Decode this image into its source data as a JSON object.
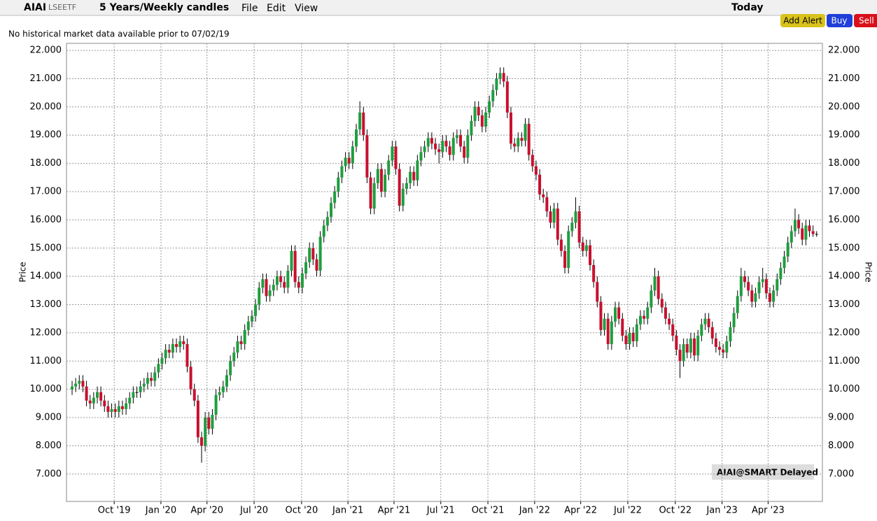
{
  "toolbar": {
    "symbol": "AIAI",
    "exchange": "LSEETF",
    "timeframe": "5 Years/Weekly candles",
    "menus": [
      "File",
      "Edit",
      "View"
    ],
    "range": "Today",
    "buttons": [
      "Add Alert",
      "Buy",
      "Sell"
    ]
  },
  "notice": "No historical market data available prior to 07/02/19",
  "watermark": "AIAI@SMART Delayed",
  "chart_data": {
    "type": "candlestick",
    "y_label": "Price",
    "grid": true,
    "up_color": "#1e9e3e",
    "down_color": "#c8102e",
    "xlim": [
      -1.56,
      208.6
    ],
    "xticks": [
      {
        "value": 11.7,
        "label": "Oct '19"
      },
      {
        "value": 24.7,
        "label": "Jan '20"
      },
      {
        "value": 37.5,
        "label": "Apr '20"
      },
      {
        "value": 50.6,
        "label": "Jul '20"
      },
      {
        "value": 63.8,
        "label": "Oct '20"
      },
      {
        "value": 76.7,
        "label": "Jan '21"
      },
      {
        "value": 89.5,
        "label": "Apr '21"
      },
      {
        "value": 102.5,
        "label": "Jul '21"
      },
      {
        "value": 115.6,
        "label": "Oct '21"
      },
      {
        "value": 128.6,
        "label": "Jan '22"
      },
      {
        "value": 141.4,
        "label": "Apr '22"
      },
      {
        "value": 154.5,
        "label": "Jul '22"
      },
      {
        "value": 167.7,
        "label": "Oct '22"
      },
      {
        "value": 180.7,
        "label": "Jan '23"
      },
      {
        "value": 193.5,
        "label": "Apr '23"
      }
    ],
    "ylim": [
      6.03,
      22.25
    ],
    "yticks": [
      {
        "value": 7,
        "label": "7.000"
      },
      {
        "value": 8,
        "label": "8.000"
      },
      {
        "value": 9,
        "label": "9.000"
      },
      {
        "value": 10,
        "label": "10.000"
      },
      {
        "value": 11,
        "label": "11.000"
      },
      {
        "value": 12,
        "label": "12.000"
      },
      {
        "value": 13,
        "label": "13.000"
      },
      {
        "value": 14,
        "label": "14.000"
      },
      {
        "value": 15,
        "label": "15.000"
      },
      {
        "value": 16,
        "label": "16.000"
      },
      {
        "value": 17,
        "label": "17.000"
      },
      {
        "value": 18,
        "label": "18.000"
      },
      {
        "value": 19,
        "label": "19.000"
      },
      {
        "value": 20,
        "label": "20.000"
      },
      {
        "value": 21,
        "label": "21.000"
      },
      {
        "value": 22,
        "label": "22.000"
      }
    ],
    "open": [
      10.0,
      10.1,
      10.2,
      10.3,
      10.1,
      9.6,
      9.5,
      9.7,
      9.9,
      9.6,
      9.4,
      9.2,
      9.3,
      9.2,
      9.4,
      9.3,
      9.5,
      9.7,
      9.9,
      9.9,
      10.1,
      10.2,
      10.4,
      10.3,
      10.6,
      10.9,
      11.1,
      11.4,
      11.3,
      11.6,
      11.5,
      11.7,
      11.6,
      10.8,
      10.0,
      9.6,
      8.3,
      8.0,
      9.0,
      8.6,
      9.1,
      9.8,
      9.9,
      10.1,
      10.5,
      11.0,
      11.3,
      11.7,
      11.6,
      12.1,
      12.4,
      12.6,
      13.0,
      13.6,
      13.9,
      13.3,
      13.5,
      13.7,
      14.0,
      13.8,
      13.6,
      14.2,
      14.9,
      13.8,
      13.6,
      14.1,
      14.5,
      15.0,
      14.6,
      14.2,
      15.4,
      15.8,
      16.1,
      16.6,
      17.0,
      17.5,
      17.9,
      18.2,
      18.0,
      18.6,
      19.2,
      19.8,
      19.0,
      17.5,
      16.4,
      17.3,
      17.8,
      17.0,
      17.6,
      18.1,
      18.6,
      17.8,
      16.5,
      17.1,
      17.3,
      17.7,
      17.4,
      18.1,
      18.4,
      18.6,
      18.9,
      18.7,
      18.5,
      18.4,
      18.8,
      18.6,
      18.3,
      18.9,
      19.0,
      18.6,
      18.2,
      19.0,
      19.5,
      20.0,
      19.7,
      19.3,
      19.8,
      20.2,
      20.6,
      21.0,
      21.2,
      20.9,
      19.8,
      18.7,
      18.6,
      18.9,
      18.8,
      19.4,
      18.3,
      17.9,
      17.6,
      16.9,
      16.8,
      16.3,
      15.9,
      16.4,
      15.3,
      14.9,
      14.3,
      15.6,
      15.9,
      16.3,
      15.2,
      14.9,
      15.1,
      14.4,
      13.8,
      13.1,
      12.1,
      12.5,
      11.6,
      12.4,
      12.9,
      12.5,
      11.9,
      11.6,
      12.0,
      11.7,
      12.3,
      12.6,
      12.5,
      12.9,
      13.5,
      14.0,
      13.2,
      12.9,
      12.5,
      12.3,
      11.9,
      11.4,
      11.0,
      11.6,
      11.3,
      11.8,
      11.2,
      11.9,
      12.3,
      12.5,
      12.2,
      11.8,
      11.5,
      11.4,
      11.3,
      11.7,
      12.2,
      12.7,
      13.3,
      14.0,
      13.8,
      13.5,
      13.1,
      13.4,
      13.8,
      13.9,
      13.4,
      13.1,
      13.5,
      13.9,
      14.3,
      14.7,
      15.2,
      15.6,
      16.0,
      15.7,
      15.3,
      15.8,
      15.6,
      15.5
    ],
    "high": [
      10.3,
      10.4,
      10.5,
      10.5,
      10.3,
      9.8,
      9.9,
      10.1,
      10.1,
      9.8,
      9.6,
      9.5,
      9.5,
      9.6,
      9.6,
      9.7,
      9.9,
      10.1,
      10.1,
      10.3,
      10.4,
      10.6,
      10.6,
      10.8,
      11.1,
      11.3,
      11.6,
      11.6,
      11.8,
      11.8,
      11.9,
      11.9,
      11.8,
      11.0,
      10.2,
      9.8,
      8.5,
      9.2,
      9.2,
      9.3,
      10.0,
      10.1,
      10.3,
      10.7,
      11.2,
      11.5,
      11.9,
      11.9,
      12.3,
      12.6,
      12.8,
      13.2,
      13.8,
      14.1,
      14.1,
      13.7,
      13.9,
      14.2,
      14.2,
      14.0,
      14.4,
      15.1,
      15.1,
      14.0,
      14.3,
      14.7,
      15.2,
      15.2,
      14.8,
      15.6,
      16.0,
      16.3,
      16.8,
      17.2,
      17.7,
      18.1,
      18.4,
      18.4,
      18.8,
      19.4,
      20.2,
      20.0,
      19.2,
      17.7,
      17.5,
      18.0,
      18.0,
      17.8,
      18.3,
      18.8,
      18.8,
      18.0,
      17.3,
      17.5,
      17.9,
      17.9,
      18.3,
      18.6,
      18.8,
      19.1,
      19.1,
      18.9,
      18.7,
      19.0,
      19.0,
      18.8,
      19.1,
      19.2,
      19.2,
      18.8,
      19.2,
      19.7,
      20.2,
      20.2,
      19.9,
      20.0,
      20.4,
      20.8,
      21.2,
      21.4,
      21.4,
      21.1,
      20.0,
      18.9,
      19.1,
      19.1,
      19.6,
      19.6,
      18.5,
      18.1,
      17.8,
      17.1,
      17.0,
      16.5,
      16.6,
      16.6,
      15.5,
      15.1,
      15.8,
      16.1,
      16.8,
      16.5,
      15.4,
      15.3,
      15.3,
      14.6,
      14.0,
      13.3,
      12.7,
      12.7,
      12.6,
      13.1,
      13.1,
      12.7,
      12.1,
      12.2,
      12.2,
      12.5,
      12.8,
      12.8,
      13.1,
      13.7,
      14.3,
      14.2,
      13.4,
      13.1,
      12.7,
      12.5,
      12.1,
      11.6,
      11.8,
      11.8,
      12.0,
      12.0,
      12.1,
      12.5,
      12.7,
      12.7,
      12.4,
      12.0,
      11.7,
      11.6,
      11.9,
      12.4,
      12.9,
      13.5,
      14.3,
      14.2,
      14.0,
      13.7,
      13.6,
      14.0,
      14.3,
      14.1,
      13.6,
      13.7,
      14.1,
      14.5,
      14.9,
      15.4,
      15.8,
      16.4,
      16.2,
      15.9,
      16.0,
      16.0,
      15.8,
      15.6
    ],
    "low": [
      9.8,
      9.9,
      10.0,
      9.9,
      9.4,
      9.3,
      9.3,
      9.5,
      9.4,
      9.2,
      9.0,
      9.0,
      9.0,
      9.0,
      9.1,
      9.1,
      9.3,
      9.5,
      9.7,
      9.7,
      9.9,
      10.0,
      10.1,
      10.1,
      10.4,
      10.7,
      10.9,
      11.1,
      11.1,
      11.3,
      11.3,
      11.4,
      10.6,
      9.8,
      9.4,
      8.1,
      7.4,
      7.8,
      8.4,
      8.4,
      8.9,
      9.6,
      9.7,
      9.9,
      10.3,
      10.8,
      11.1,
      11.4,
      11.4,
      11.9,
      12.2,
      12.4,
      12.8,
      13.4,
      13.1,
      13.1,
      13.3,
      13.5,
      13.6,
      13.4,
      13.4,
      14.0,
      13.6,
      13.4,
      13.4,
      13.9,
      14.3,
      14.4,
      14.0,
      14.0,
      15.2,
      15.6,
      15.9,
      16.4,
      16.8,
      17.3,
      17.7,
      17.8,
      17.8,
      18.4,
      19.0,
      18.8,
      17.3,
      16.2,
      16.2,
      17.1,
      16.8,
      16.8,
      17.4,
      17.9,
      17.6,
      16.3,
      16.3,
      16.9,
      17.1,
      17.2,
      17.2,
      17.9,
      18.2,
      18.4,
      18.5,
      18.3,
      18.0,
      18.2,
      18.4,
      18.1,
      18.1,
      18.7,
      18.4,
      18.0,
      18.0,
      18.8,
      19.3,
      19.5,
      19.1,
      19.1,
      19.6,
      20.0,
      20.4,
      20.8,
      20.7,
      19.6,
      18.5,
      18.4,
      18.4,
      18.6,
      18.6,
      18.1,
      17.7,
      17.4,
      16.7,
      16.6,
      16.1,
      15.7,
      15.7,
      15.1,
      14.7,
      14.1,
      14.1,
      15.4,
      15.7,
      15.0,
      14.7,
      14.7,
      14.2,
      13.6,
      12.9,
      11.9,
      11.9,
      11.4,
      11.4,
      12.2,
      12.3,
      11.7,
      11.4,
      11.4,
      11.5,
      11.5,
      12.1,
      12.3,
      12.3,
      12.7,
      13.3,
      13.0,
      12.7,
      12.3,
      12.1,
      11.7,
      11.2,
      10.4,
      10.8,
      11.1,
      11.1,
      11.0,
      11.0,
      11.7,
      12.1,
      12.0,
      11.6,
      11.3,
      11.2,
      11.1,
      11.1,
      11.5,
      12.0,
      12.5,
      13.1,
      13.6,
      13.3,
      12.9,
      12.9,
      13.2,
      13.6,
      13.2,
      12.9,
      12.9,
      13.3,
      13.7,
      14.1,
      14.5,
      15.0,
      15.4,
      15.5,
      15.1,
      15.1,
      15.4,
      15.4,
      15.4
    ],
    "close": [
      10.1,
      10.2,
      10.3,
      10.1,
      9.6,
      9.5,
      9.7,
      9.9,
      9.6,
      9.4,
      9.2,
      9.3,
      9.2,
      9.4,
      9.3,
      9.5,
      9.7,
      9.9,
      9.9,
      10.1,
      10.2,
      10.4,
      10.3,
      10.6,
      10.9,
      11.1,
      11.4,
      11.3,
      11.6,
      11.5,
      11.7,
      11.6,
      10.8,
      10.0,
      9.6,
      8.3,
      8.0,
      9.0,
      8.6,
      9.1,
      9.8,
      9.9,
      10.1,
      10.5,
      11.0,
      11.3,
      11.7,
      11.6,
      12.1,
      12.4,
      12.6,
      13.0,
      13.6,
      13.9,
      13.3,
      13.5,
      13.7,
      14.0,
      13.8,
      13.6,
      14.2,
      14.9,
      13.8,
      13.6,
      14.1,
      14.5,
      15.0,
      14.6,
      14.2,
      15.4,
      15.8,
      16.1,
      16.6,
      17.0,
      17.5,
      17.9,
      18.2,
      18.0,
      18.6,
      19.2,
      19.8,
      19.0,
      17.5,
      16.4,
      17.3,
      17.8,
      17.0,
      17.6,
      18.1,
      18.6,
      17.8,
      16.5,
      17.1,
      17.3,
      17.7,
      17.4,
      18.1,
      18.4,
      18.6,
      18.9,
      18.7,
      18.5,
      18.4,
      18.8,
      18.6,
      18.3,
      18.9,
      19.0,
      18.6,
      18.2,
      19.0,
      19.5,
      20.0,
      19.7,
      19.3,
      19.8,
      20.2,
      20.6,
      21.0,
      21.2,
      20.9,
      19.8,
      18.7,
      18.6,
      18.9,
      18.8,
      19.4,
      18.3,
      17.9,
      17.6,
      16.9,
      16.8,
      16.3,
      15.9,
      16.4,
      15.3,
      14.9,
      14.3,
      15.6,
      15.9,
      16.3,
      15.2,
      14.9,
      15.1,
      14.4,
      13.8,
      13.1,
      12.1,
      12.5,
      11.6,
      12.4,
      12.9,
      12.5,
      11.9,
      11.6,
      12.0,
      11.7,
      12.3,
      12.6,
      12.5,
      12.9,
      13.5,
      14.0,
      13.2,
      12.9,
      12.5,
      12.3,
      11.9,
      11.4,
      11.0,
      11.6,
      11.3,
      11.8,
      11.2,
      11.9,
      12.3,
      12.5,
      12.2,
      11.8,
      11.5,
      11.4,
      11.3,
      11.7,
      12.2,
      12.7,
      13.3,
      14.0,
      13.8,
      13.5,
      13.1,
      13.4,
      13.8,
      13.9,
      13.4,
      13.1,
      13.5,
      13.9,
      14.3,
      14.7,
      15.2,
      15.6,
      16.0,
      15.7,
      15.3,
      15.8,
      15.6,
      15.5,
      15.5
    ]
  }
}
